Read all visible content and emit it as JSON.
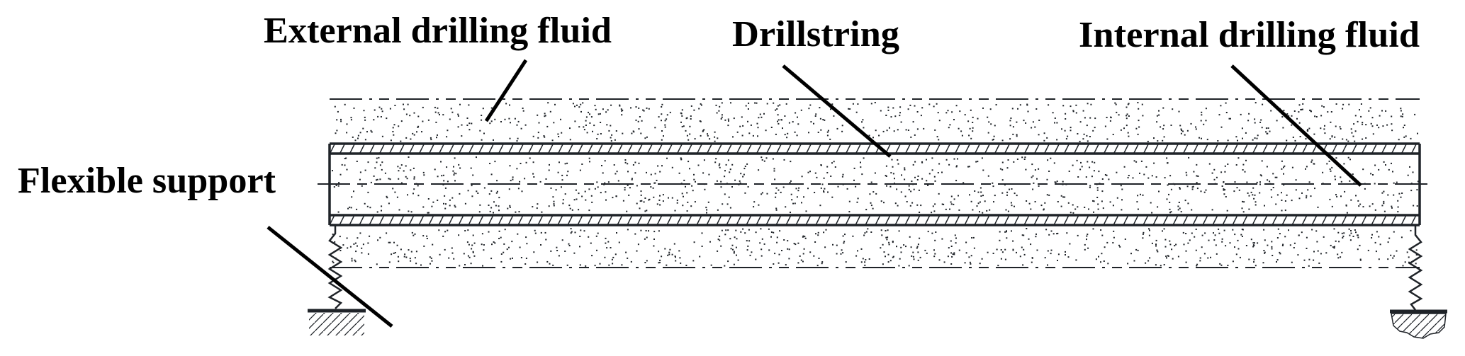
{
  "labels": {
    "external_fluid": "External drilling fluid",
    "drillstring": "Drillstring",
    "internal_fluid": "Internal drilling fluid",
    "flexible_support": "Flexible support"
  },
  "colors": {
    "line": "#1f2328",
    "leader": "#000000"
  }
}
